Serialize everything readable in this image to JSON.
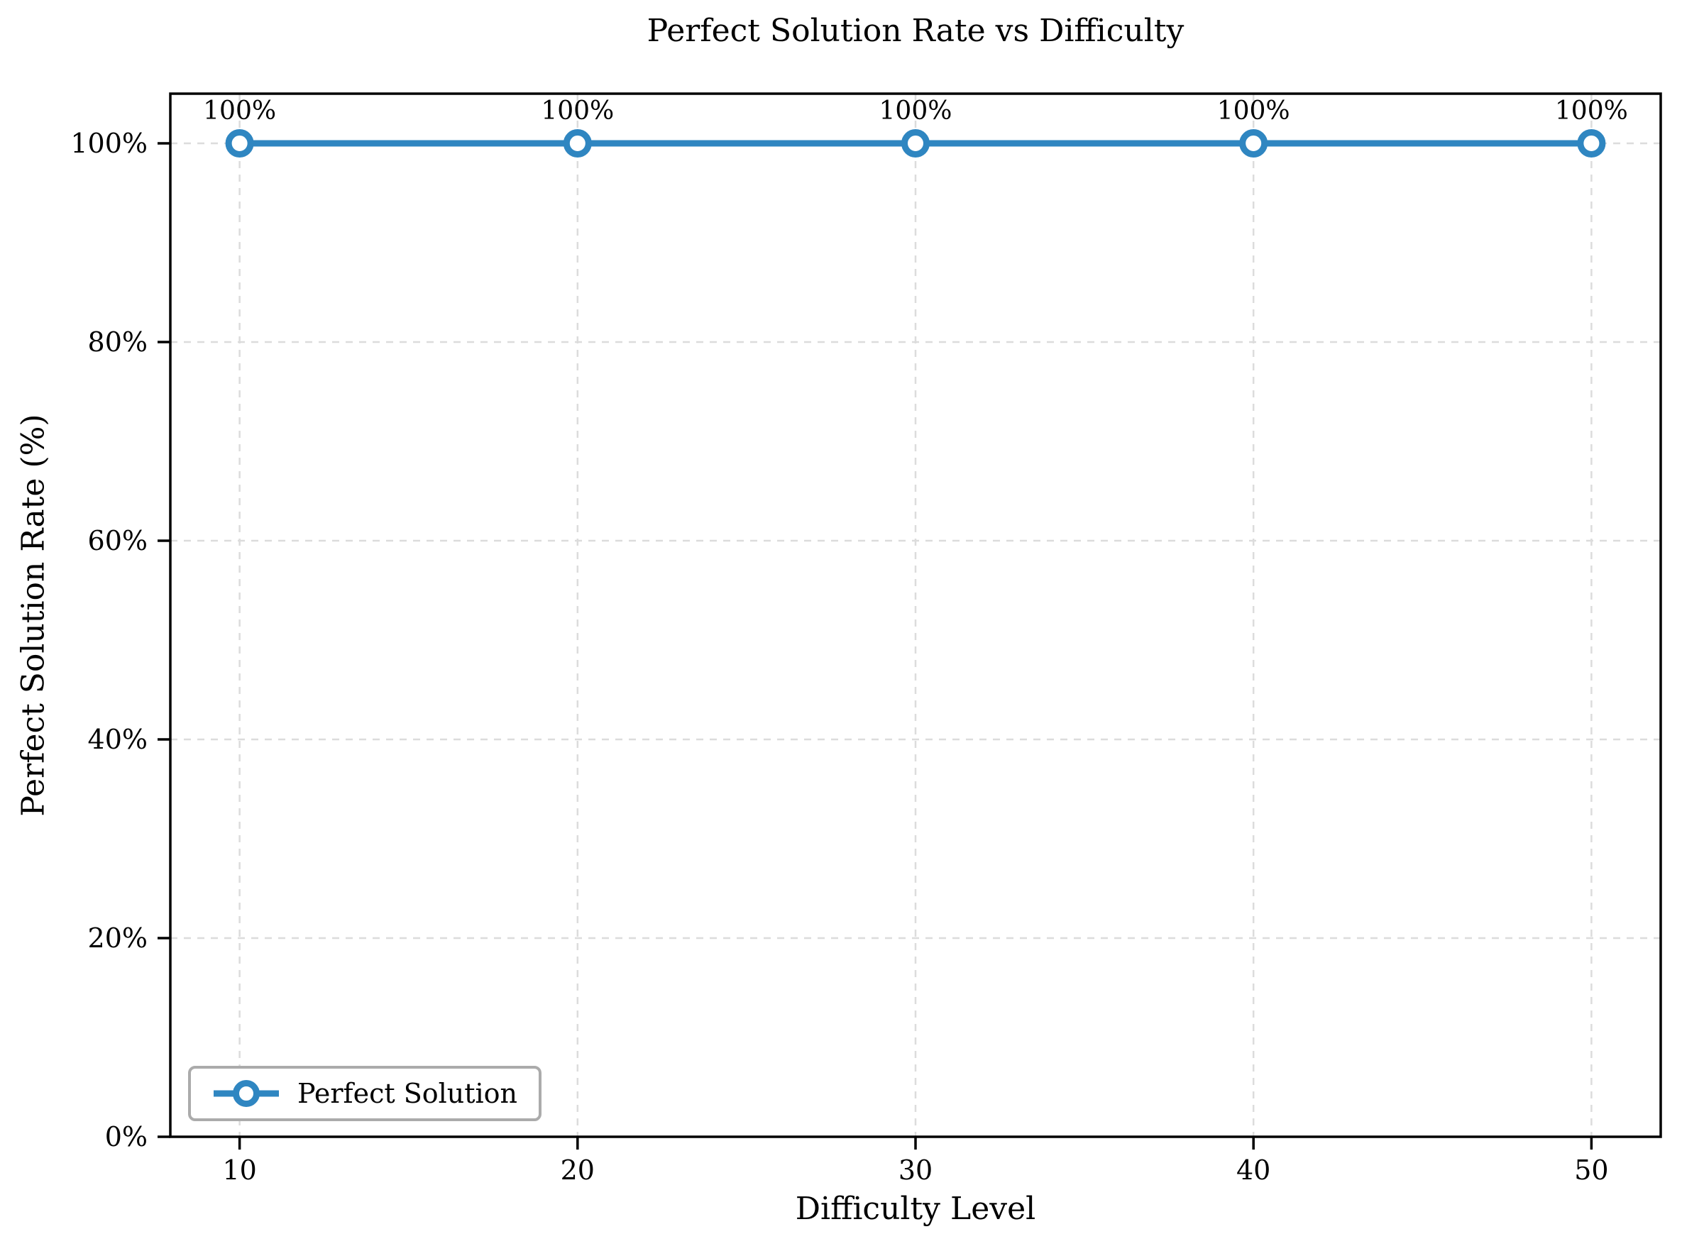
{
  "chart_data": {
    "type": "line",
    "title": "Perfect Solution Rate vs Difficulty",
    "xlabel": "Difficulty Level",
    "ylabel": "Perfect Solution Rate (%)",
    "x": [
      10,
      20,
      30,
      40,
      50
    ],
    "x_tick_labels": [
      "10",
      "20",
      "30",
      "40",
      "50"
    ],
    "y_ticks": [
      0,
      20,
      40,
      60,
      80,
      100
    ],
    "y_tick_labels": [
      "0%",
      "20%",
      "40%",
      "60%",
      "80%",
      "100%"
    ],
    "xlim": [
      7.95,
      52.05
    ],
    "ylim": [
      0,
      105
    ],
    "grid": true,
    "grid_style": "dashed",
    "legend_position": "lower left",
    "series": [
      {
        "name": "Perfect Solution",
        "values": [
          100,
          100,
          100,
          100,
          100
        ],
        "point_labels": [
          "100%",
          "100%",
          "100%",
          "100%",
          "100%"
        ],
        "marker": "open-circle"
      }
    ],
    "colors": {
      "line": "#2f86c1",
      "marker_fill": "#ffffff",
      "grid": "#dcdcdc",
      "spine": "#000000",
      "text": "#000000",
      "legend_border": "#ababab",
      "background": "#ffffff"
    }
  }
}
